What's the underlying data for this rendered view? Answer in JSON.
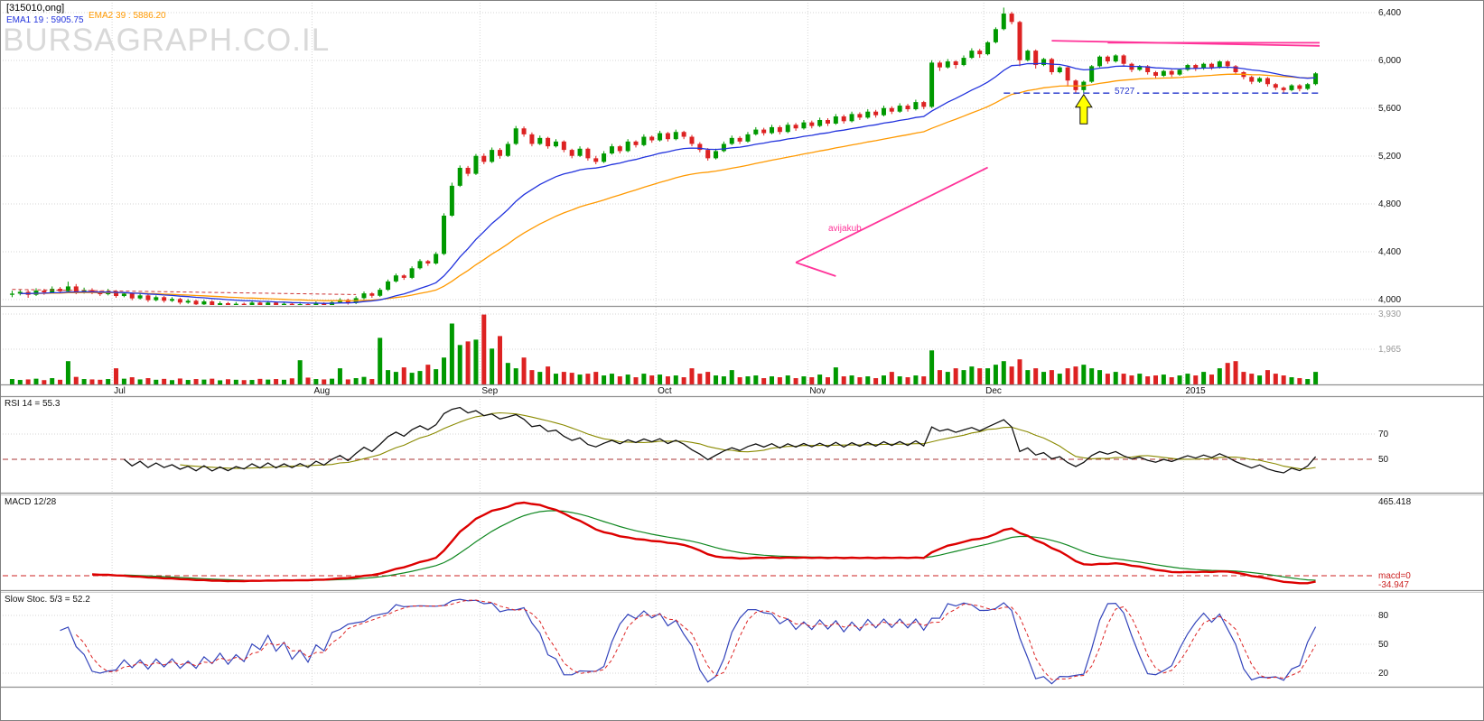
{
  "header": {
    "title": "[315010,ong]",
    "ema1_label": "EMA1 19 : 5905.75",
    "ema2_label": "EMA2 39 : 5886.20",
    "watermark": "BURSAGRAPH.CO.IL"
  },
  "panel_labels": {
    "rsi": "RSI 14 = 55.3",
    "macd": "MACD 12/28",
    "stoch": "Slow Stoc. 5/3 = 52.2"
  },
  "colors": {
    "up": "#009900",
    "down": "#dd2222",
    "ema1": "#2233dd",
    "ema2": "#ff9900",
    "rsi": "#111111",
    "rsi_smooth": "#8a8a00",
    "macd": "#dd0000",
    "macd_signal": "#118822",
    "stoch_k": "#3344bb",
    "stoch_d": "#dd2222",
    "pink": "#ff3399",
    "support": "#2233cc",
    "grid": "#d6d6d6",
    "dashed_mid": "#aa3333"
  },
  "chart_data": {
    "type": "candlestick",
    "description": "Daily candlestick chart with volume, RSI, MACD and Slow Stochastic panels",
    "axis": {
      "price_ticks": [
        {
          "label": "6,400",
          "value": 6400
        },
        {
          "label": "6,000",
          "value": 6000
        },
        {
          "label": "5,600",
          "value": 5600
        },
        {
          "label": "5,200",
          "value": 5200
        },
        {
          "label": "4,800",
          "value": 4800
        },
        {
          "label": "4,400",
          "value": 4400
        },
        {
          "label": "4,000",
          "value": 4000
        }
      ],
      "price_range": [
        3900,
        6440
      ],
      "volume_ticks": [
        {
          "label": "3,930",
          "value": 3930
        },
        {
          "label": "1,965",
          "value": 1965
        }
      ],
      "rsi_ticks": [
        {
          "label": "70",
          "value": 70
        },
        {
          "label": "50",
          "value": 50
        }
      ],
      "stoch_ticks": [
        {
          "label": "80",
          "value": 80
        },
        {
          "label": "50",
          "value": 50
        },
        {
          "label": "20",
          "value": 20
        }
      ],
      "macd_axis": {
        "top_label": "465.418",
        "zero_label": "macd=0",
        "below_label": "-34.947"
      },
      "months": [
        {
          "label": "Jul",
          "index": 13
        },
        {
          "label": "Aug",
          "index": 38
        },
        {
          "label": "Sep",
          "index": 59
        },
        {
          "label": "Oct",
          "index": 81
        },
        {
          "label": "Nov",
          "index": 100
        },
        {
          "label": "Dec",
          "index": 122
        },
        {
          "label": "2015",
          "index": 147
        }
      ]
    },
    "indicators": {
      "ema1": 19,
      "ema2": 39,
      "rsi": 14,
      "rsi_smooth": 8,
      "macd_fast": 12,
      "macd_slow": 28,
      "macd_signal": 9,
      "stoch_k": 5,
      "stoch_smooth": 3
    },
    "annotations": {
      "support_line": {
        "label": "5727",
        "price": 5727,
        "from_index": 124
      },
      "arrow": {
        "index": 134,
        "price_tip": 5715,
        "price_base": 5470,
        "color": "#ffff00"
      },
      "trend_text": {
        "label": "avijakub",
        "index": 103,
        "price": 4580
      },
      "early_resistance": {
        "from": [
          0,
          4085
        ],
        "to": [
          43,
          4042
        ]
      },
      "pink_lines": [
        [
          [
            130,
            6165
          ],
          [
            163.5,
            6122
          ]
        ],
        [
          [
            137,
            6148
          ],
          [
            163.5,
            6148
          ]
        ],
        [
          [
            98,
            4310
          ],
          [
            122,
            5105
          ]
        ],
        [
          [
            98,
            4310
          ],
          [
            103,
            4196
          ]
        ]
      ]
    },
    "candles": [
      [
        4040,
        4075,
        4020,
        4050,
        300
      ],
      [
        4050,
        4085,
        4035,
        4065,
        250
      ],
      [
        4065,
        4080,
        4015,
        4040,
        280
      ],
      [
        4040,
        4095,
        4030,
        4075,
        320
      ],
      [
        4075,
        4090,
        4040,
        4060,
        240
      ],
      [
        4060,
        4110,
        4050,
        4090,
        350
      ],
      [
        4090,
        4105,
        4055,
        4070,
        260
      ],
      [
        4070,
        4150,
        4060,
        4110,
        1300
      ],
      [
        4110,
        4130,
        4045,
        4060,
        420
      ],
      [
        4060,
        4100,
        4050,
        4080,
        300
      ],
      [
        4080,
        4095,
        4045,
        4060,
        280
      ],
      [
        4060,
        4075,
        4030,
        4045,
        260
      ],
      [
        4045,
        4090,
        4035,
        4070,
        300
      ],
      [
        4070,
        4080,
        4015,
        4030,
        900
      ],
      [
        4030,
        4065,
        4020,
        4050,
        320
      ],
      [
        4050,
        4060,
        3995,
        4010,
        400
      ],
      [
        4010,
        4050,
        4000,
        4035,
        280
      ],
      [
        4035,
        4045,
        3980,
        3995,
        350
      ],
      [
        3995,
        4035,
        3985,
        4020,
        260
      ],
      [
        4020,
        4030,
        3975,
        3990,
        310
      ],
      [
        3990,
        4020,
        3980,
        4005,
        240
      ],
      [
        4005,
        4015,
        3960,
        3975,
        330
      ],
      [
        3975,
        4005,
        3965,
        3990,
        250
      ],
      [
        3990,
        4000,
        3945,
        3960,
        300
      ],
      [
        3960,
        4000,
        3950,
        3985,
        270
      ],
      [
        3985,
        3995,
        3935,
        3950,
        320
      ],
      [
        3950,
        3985,
        3940,
        3970,
        230
      ],
      [
        3970,
        3980,
        3932,
        3945,
        290
      ],
      [
        3945,
        3980,
        3935,
        3965,
        260
      ],
      [
        3965,
        3975,
        3938,
        3950,
        240
      ],
      [
        3950,
        3990,
        3945,
        3975,
        250
      ],
      [
        3975,
        3985,
        3935,
        3950,
        310
      ],
      [
        3950,
        3990,
        3940,
        3975,
        270
      ],
      [
        3975,
        3985,
        3930,
        3945,
        300
      ],
      [
        3945,
        3980,
        3935,
        3965,
        260
      ],
      [
        3965,
        3972,
        3930,
        3942,
        340
      ],
      [
        3942,
        3980,
        3932,
        3962,
        1350
      ],
      [
        3962,
        3968,
        3928,
        3940,
        380
      ],
      [
        3940,
        3985,
        3930,
        3970,
        300
      ],
      [
        3970,
        3978,
        3936,
        3948,
        280
      ],
      [
        3948,
        3992,
        3940,
        3978,
        320
      ],
      [
        3978,
        4012,
        3968,
        3998,
        900
      ],
      [
        3998,
        4008,
        3958,
        3972,
        280
      ],
      [
        3972,
        4028,
        3962,
        4012,
        350
      ],
      [
        4012,
        4068,
        4002,
        4052,
        420
      ],
      [
        4052,
        4062,
        4015,
        4032,
        300
      ],
      [
        4032,
        4098,
        4022,
        4082,
        2600
      ],
      [
        4082,
        4168,
        4072,
        4152,
        800
      ],
      [
        4152,
        4218,
        4142,
        4202,
        700
      ],
      [
        4202,
        4212,
        4165,
        4182,
        950
      ],
      [
        4182,
        4278,
        4172,
        4262,
        650
      ],
      [
        4262,
        4338,
        4252,
        4322,
        750
      ],
      [
        4322,
        4332,
        4282,
        4302,
        1100
      ],
      [
        4302,
        4398,
        4292,
        4382,
        850
      ],
      [
        4382,
        4722,
        4372,
        4702,
        1500
      ],
      [
        4702,
        4978,
        4692,
        4952,
        3400
      ],
      [
        4952,
        5122,
        4942,
        5102,
        2200
      ],
      [
        5102,
        5118,
        5032,
        5052,
        2400
      ],
      [
        5052,
        5218,
        5042,
        5202,
        2500
      ],
      [
        5202,
        5222,
        5132,
        5152,
        3900
      ],
      [
        5152,
        5272,
        5142,
        5252,
        2000
      ],
      [
        5252,
        5268,
        5178,
        5202,
        2700
      ],
      [
        5202,
        5322,
        5192,
        5302,
        1200
      ],
      [
        5302,
        5452,
        5292,
        5432,
        900
      ],
      [
        5432,
        5448,
        5362,
        5382,
        1500
      ],
      [
        5382,
        5398,
        5282,
        5302,
        800
      ],
      [
        5302,
        5372,
        5292,
        5352,
        700
      ],
      [
        5352,
        5362,
        5262,
        5282,
        1000
      ],
      [
        5282,
        5342,
        5272,
        5322,
        600
      ],
      [
        5322,
        5332,
        5232,
        5252,
        700
      ],
      [
        5252,
        5262,
        5182,
        5202,
        650
      ],
      [
        5202,
        5282,
        5192,
        5262,
        550
      ],
      [
        5262,
        5272,
        5162,
        5182,
        600
      ],
      [
        5182,
        5202,
        5132,
        5152,
        700
      ],
      [
        5152,
        5242,
        5142,
        5222,
        500
      ],
      [
        5222,
        5302,
        5212,
        5282,
        600
      ],
      [
        5282,
        5292,
        5222,
        5242,
        450
      ],
      [
        5242,
        5342,
        5232,
        5322,
        550
      ],
      [
        5322,
        5332,
        5272,
        5292,
        400
      ],
      [
        5292,
        5382,
        5282,
        5362,
        600
      ],
      [
        5362,
        5372,
        5312,
        5332,
        500
      ],
      [
        5332,
        5412,
        5322,
        5392,
        550
      ],
      [
        5392,
        5402,
        5322,
        5342,
        450
      ],
      [
        5342,
        5422,
        5332,
        5402,
        500
      ],
      [
        5402,
        5412,
        5342,
        5362,
        400
      ],
      [
        5362,
        5377,
        5282,
        5302,
        900
      ],
      [
        5302,
        5317,
        5232,
        5252,
        600
      ],
      [
        5252,
        5267,
        5162,
        5182,
        700
      ],
      [
        5182,
        5262,
        5172,
        5242,
        500
      ],
      [
        5242,
        5322,
        5232,
        5302,
        450
      ],
      [
        5302,
        5372,
        5292,
        5352,
        800
      ],
      [
        5352,
        5367,
        5302,
        5322,
        400
      ],
      [
        5322,
        5402,
        5312,
        5382,
        450
      ],
      [
        5382,
        5442,
        5372,
        5422,
        500
      ],
      [
        5422,
        5437,
        5372,
        5392,
        350
      ],
      [
        5392,
        5462,
        5382,
        5442,
        450
      ],
      [
        5442,
        5457,
        5382,
        5402,
        400
      ],
      [
        5402,
        5482,
        5392,
        5462,
        500
      ],
      [
        5462,
        5477,
        5412,
        5432,
        350
      ],
      [
        5432,
        5502,
        5422,
        5482,
        450
      ],
      [
        5482,
        5497,
        5432,
        5452,
        400
      ],
      [
        5452,
        5522,
        5442,
        5502,
        550
      ],
      [
        5502,
        5517,
        5452,
        5472,
        400
      ],
      [
        5472,
        5552,
        5462,
        5532,
        950
      ],
      [
        5532,
        5547,
        5472,
        5492,
        450
      ],
      [
        5492,
        5572,
        5482,
        5552,
        500
      ],
      [
        5552,
        5567,
        5502,
        5522,
        400
      ],
      [
        5522,
        5592,
        5512,
        5572,
        450
      ],
      [
        5572,
        5587,
        5522,
        5542,
        350
      ],
      [
        5542,
        5622,
        5532,
        5602,
        500
      ],
      [
        5602,
        5617,
        5552,
        5572,
        700
      ],
      [
        5572,
        5642,
        5562,
        5622,
        450
      ],
      [
        5622,
        5637,
        5572,
        5592,
        400
      ],
      [
        5592,
        5672,
        5582,
        5652,
        500
      ],
      [
        5652,
        5662,
        5592,
        5612,
        450
      ],
      [
        5612,
        6002,
        5602,
        5982,
        1900
      ],
      [
        5982,
        5997,
        5912,
        5942,
        800
      ],
      [
        5942,
        6012,
        5932,
        5992,
        700
      ],
      [
        5992,
        6002,
        5932,
        5962,
        900
      ],
      [
        5962,
        6042,
        5952,
        6022,
        800
      ],
      [
        6022,
        6102,
        6012,
        6082,
        1000
      ],
      [
        6082,
        6097,
        6022,
        6052,
        900
      ],
      [
        6052,
        6162,
        6042,
        6152,
        900
      ],
      [
        6152,
        6277,
        6142,
        6262,
        1100
      ],
      [
        6262,
        6442,
        6252,
        6392,
        1300
      ],
      [
        6392,
        6407,
        6302,
        6322,
        1000
      ],
      [
        6322,
        6332,
        5952,
        6002,
        1400
      ],
      [
        6002,
        6092,
        5992,
        6082,
        800
      ],
      [
        6082,
        6092,
        5932,
        5962,
        900
      ],
      [
        5962,
        6022,
        5952,
        6012,
        700
      ],
      [
        6012,
        6022,
        5882,
        5902,
        800
      ],
      [
        5902,
        5952,
        5892,
        5942,
        600
      ],
      [
        5942,
        5952,
        5782,
        5832,
        900
      ],
      [
        5832,
        5842,
        5727,
        5752,
        1000
      ],
      [
        5752,
        5832,
        5732,
        5822,
        1100
      ],
      [
        5822,
        5962,
        5812,
        5952,
        900
      ],
      [
        5952,
        6042,
        5942,
        6032,
        800
      ],
      [
        6032,
        6042,
        5972,
        5992,
        600
      ],
      [
        5992,
        6052,
        5982,
        6042,
        700
      ],
      [
        6042,
        6052,
        5957,
        5972,
        600
      ],
      [
        5972,
        5982,
        5902,
        5922,
        500
      ],
      [
        5922,
        5962,
        5912,
        5952,
        600
      ],
      [
        5952,
        5962,
        5882,
        5902,
        450
      ],
      [
        5902,
        5912,
        5852,
        5872,
        500
      ],
      [
        5872,
        5922,
        5862,
        5912,
        550
      ],
      [
        5912,
        5922,
        5862,
        5882,
        400
      ],
      [
        5882,
        5932,
        5872,
        5922,
        500
      ],
      [
        5922,
        5972,
        5912,
        5962,
        600
      ],
      [
        5962,
        5972,
        5912,
        5932,
        500
      ],
      [
        5932,
        5982,
        5922,
        5972,
        700
      ],
      [
        5972,
        5982,
        5922,
        5942,
        550
      ],
      [
        5942,
        6002,
        5932,
        5992,
        900
      ],
      [
        5992,
        6002,
        5932,
        5952,
        1200
      ],
      [
        5952,
        5962,
        5882,
        5902,
        1300
      ],
      [
        5902,
        5912,
        5842,
        5862,
        700
      ],
      [
        5862,
        5872,
        5802,
        5822,
        600
      ],
      [
        5822,
        5862,
        5812,
        5852,
        500
      ],
      [
        5852,
        5862,
        5782,
        5802,
        800
      ],
      [
        5802,
        5812,
        5752,
        5772,
        600
      ],
      [
        5772,
        5782,
        5732,
        5752,
        500
      ],
      [
        5752,
        5802,
        5742,
        5792,
        400
      ],
      [
        5792,
        5802,
        5742,
        5762,
        350
      ],
      [
        5762,
        5812,
        5752,
        5802,
        300
      ],
      [
        5802,
        5902,
        5792,
        5892,
        700
      ]
    ]
  }
}
